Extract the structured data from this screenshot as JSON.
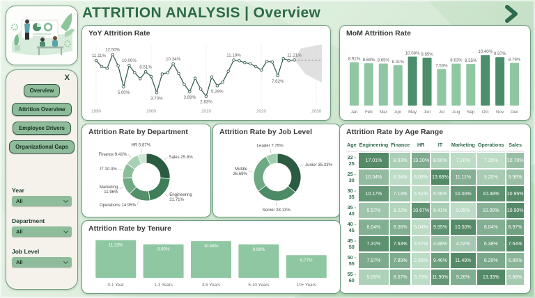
{
  "header": {
    "title": "ATTRITION ANALYSIS | Overview"
  },
  "sidebar": {
    "close_label": "X",
    "nav_buttons": [
      {
        "label": "Overview"
      },
      {
        "label": "Attrition Overview"
      },
      {
        "label": "Employee Drivers"
      },
      {
        "label": "Organizational Gaps"
      }
    ],
    "filters": [
      {
        "label": "Year",
        "value": "All"
      },
      {
        "label": "Department",
        "value": "All"
      },
      {
        "label": "Job Level",
        "value": "All"
      }
    ]
  },
  "colors": {
    "accent_dark": "#2c6a4a",
    "bar_light": "#8fc7a2",
    "bar_dark": "#4b8e6b",
    "line": "#3b5f4e",
    "forecast_band": "#d8d8d8",
    "heat_min": "#bcdcc6",
    "heat_max": "#558a68",
    "dept_palette": [
      "#2b5b41",
      "#3e7e58",
      "#549069",
      "#70aa83",
      "#8abd99",
      "#a8d0b4",
      "#cce6d3"
    ],
    "job_palette": [
      "#2b5b41",
      "#4d8a66",
      "#6da983",
      "#9fcdad"
    ]
  },
  "chart_data": [
    {
      "type": "line",
      "title": "YoY Attrition Rate",
      "ylim": [
        1.5,
        14
      ],
      "x_range": [
        1989.5,
        2031
      ],
      "x_ticks": [
        "1990",
        "2000",
        "2010",
        "2020",
        "2030"
      ],
      "points": [
        [
          1990,
          11.11,
          "11.11%",
          "a"
        ],
        [
          1991,
          9.7
        ],
        [
          1992,
          9.3
        ],
        [
          1993,
          12.5,
          "12.50%",
          "a"
        ],
        [
          1994,
          9.9
        ],
        [
          1995,
          5.0,
          "5.00%",
          "b"
        ],
        [
          1996,
          10.0,
          "10.00%",
          "a"
        ],
        [
          1997,
          8.3
        ],
        [
          1998,
          6.9
        ],
        [
          1999,
          8.51,
          "8.51%",
          "a"
        ],
        [
          2000,
          7.4
        ],
        [
          2001,
          3.7,
          "3.70%",
          "b"
        ],
        [
          2002,
          8.0
        ],
        [
          2003,
          8.3
        ],
        [
          2004,
          10.34,
          "10.34%",
          "a"
        ],
        [
          2005,
          8.1
        ],
        [
          2006,
          5.6
        ],
        [
          2007,
          3.89,
          "3.89%",
          "b"
        ],
        [
          2008,
          7.0
        ],
        [
          2009,
          4.5
        ],
        [
          2010,
          2.83,
          "2.83%",
          "b"
        ],
        [
          2011,
          7.3
        ],
        [
          2012,
          5.29,
          "5.29%",
          "b"
        ],
        [
          2013,
          6.1
        ],
        [
          2014,
          8.6
        ],
        [
          2015,
          11.19,
          "11.19%",
          "a"
        ],
        [
          2016,
          11.05
        ],
        [
          2017,
          10.6
        ],
        [
          2018,
          10.35
        ],
        [
          2019,
          9.7
        ],
        [
          2020,
          8.9
        ],
        [
          2021,
          10.9
        ],
        [
          2022,
          10.75
        ],
        [
          2023,
          7.62,
          "7.62%",
          "b"
        ],
        [
          2024,
          11.55
        ],
        [
          2025,
          11.1
        ],
        [
          2026,
          11.21,
          "11.21%",
          "a"
        ]
      ],
      "forecast": {
        "value": 11.21,
        "from": 2026,
        "to": 2031,
        "band": [
          [
            2026,
            11.3
          ],
          [
            2027.2,
            13.9
          ],
          [
            2031,
            14.8
          ],
          [
            2031,
            6.0
          ],
          [
            2028,
            8.0
          ]
        ]
      }
    },
    {
      "type": "bar",
      "title": "MoM Attrition Rate",
      "categories": [
        "Jan",
        "Feb",
        "Mar",
        "Apr",
        "May",
        "Jun",
        "Jul",
        "Aug",
        "Sep",
        "Oct",
        "Nov",
        "Dec"
      ],
      "values": [
        8.91,
        8.69,
        8.65,
        8.31,
        10.08,
        9.85,
        7.53,
        8.63,
        8.55,
        10.4,
        9.97,
        8.79
      ],
      "highlight_threshold": 9.5,
      "ylim": [
        0,
        11
      ]
    },
    {
      "type": "pie",
      "title": "Attrition Rate by Department",
      "slices": [
        {
          "name": "Sales",
          "value": 25.8,
          "display": "Sales 25.8%",
          "wrap": false
        },
        {
          "name": "Engineering",
          "value": 21.71,
          "display": "Engineering 21.71%",
          "wrap": true
        },
        {
          "name": "Operations",
          "value": 14.95,
          "display": "Operations 14.95%",
          "wrap": false
        },
        {
          "name": "Marketing",
          "value": 11.96,
          "display": "Marketing 11.96%",
          "wrap": true
        },
        {
          "name": "IT",
          "value": 10.3,
          "display": "IT 10.3%",
          "wrap": false
        },
        {
          "name": "Finance",
          "value": 9.41,
          "display": "Finance 9.41%",
          "wrap": false
        },
        {
          "name": "HR",
          "value": 5.87,
          "display": "HR 5.87%",
          "wrap": false
        }
      ]
    },
    {
      "type": "pie",
      "title": "Attrition Rate by Job Level",
      "slices": [
        {
          "name": "Junior",
          "value": 35.33,
          "display": "Junior 35.33%",
          "wrap": false
        },
        {
          "name": "Senior",
          "value": 28.13,
          "display": "Senior 28.13%",
          "wrap": false
        },
        {
          "name": "Middle",
          "value": 26.69,
          "display": "Middle 26.69%",
          "wrap": true
        },
        {
          "name": "Leader",
          "value": 7.75,
          "display": "Leader 7.75%",
          "wrap": false
        }
      ]
    },
    {
      "type": "heatmap",
      "title": "Attrition Rate by Age Range",
      "row_header": "Age",
      "columns": [
        "Engineering",
        "Finance",
        "HR",
        "IT",
        "Marketing",
        "Operations",
        "Sales"
      ],
      "rows": [
        "22 - 25",
        "25 - 30",
        "30 - 35",
        "35 - 40",
        "40 - 45",
        "45 - 50",
        "50 - 55",
        "55 - 60"
      ],
      "values": [
        [
          17.01,
          8.93,
          13.1,
          8.6,
          7.26,
          7.35,
          10.7
        ],
        [
          10.34,
          8.04,
          8.08,
          13.68,
          11.11,
          9.2,
          9.96
        ],
        [
          10.17,
          7.14,
          5.51,
          6.56,
          10.0,
          10.48,
          10.95
        ],
        [
          9.57,
          9.22,
          10.67,
          9.41,
          9.05,
          10.0,
          10.9
        ],
        [
          8.04,
          8.06,
          5.04,
          9.95,
          10.5,
          8.04,
          8.97
        ],
        [
          7.31,
          7.63,
          3.57,
          4.88,
          4.52,
          6.38,
          7.64
        ],
        [
          7.97,
          7.89,
          2.56,
          9.46,
          11.49,
          8.2,
          6.86
        ],
        [
          5.05,
          8.57,
          3.7,
          11.9,
          9.26,
          13.33,
          5.88
        ]
      ]
    },
    {
      "type": "bar",
      "title": "Attrition Rate by Tenure",
      "categories": [
        "0-1 Year",
        "1-3 Years",
        "3-5 Years",
        "5-10 Years",
        "10+ Years"
      ],
      "values": [
        11.23,
        9.99,
        10.94,
        9.98,
        6.77
      ],
      "ylim": [
        0,
        12
      ],
      "label_position": "inside"
    }
  ]
}
